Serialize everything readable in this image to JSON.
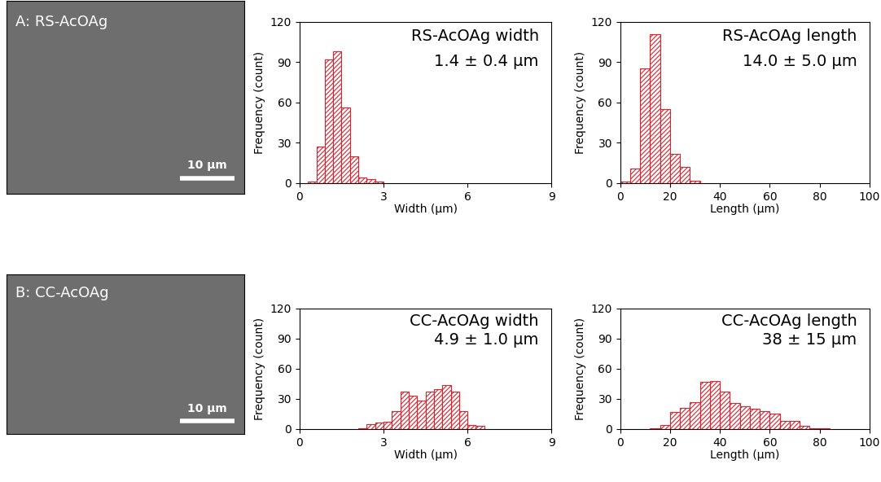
{
  "images": [
    {
      "label": "A: RS-AcOAg",
      "scale_bar": "10 µm"
    },
    {
      "label": "B: CC-AcOAg",
      "scale_bar": "10 µm"
    }
  ],
  "chart_data": [
    {
      "type": "histogram",
      "title": "RS-AcOAg width",
      "subtitle": "1.4 ± 0.4 µm",
      "x_label": "Width (µm)",
      "y_label": "Frequency (count)",
      "bins": [
        0.3,
        0.6,
        0.9,
        1.2,
        1.5,
        1.8,
        2.1,
        2.4,
        2.7,
        3.0
      ],
      "counts": [
        1,
        27,
        92,
        98,
        56,
        20,
        4,
        3,
        1
      ],
      "color": "#e0202a",
      "xlim": [
        0,
        9
      ],
      "xticks": [
        0,
        3,
        6,
        9
      ],
      "ylim": [
        0,
        120
      ],
      "yticks": [
        0,
        30,
        60,
        90,
        120
      ]
    },
    {
      "type": "histogram",
      "title": "RS-AcOAg length",
      "subtitle": "14.0 ± 5.0 µm",
      "x_label": "Length (µm)",
      "y_label": "Frequency (count)",
      "bins": [
        0,
        4,
        8,
        12,
        16,
        20,
        24,
        28,
        32
      ],
      "counts": [
        1,
        11,
        85,
        111,
        55,
        22,
        12,
        2
      ],
      "color": "#e0202a",
      "xlim": [
        0,
        100
      ],
      "xticks": [
        0,
        20,
        40,
        60,
        80,
        100
      ],
      "ylim": [
        0,
        120
      ],
      "yticks": [
        0,
        30,
        60,
        90,
        120
      ]
    },
    {
      "type": "histogram",
      "title": "CC-AcOAg width",
      "subtitle": "4.9 ± 1.0 µm",
      "x_label": "Width (µm)",
      "y_label": "Frequency (count)",
      "bins": [
        2.1,
        2.4,
        2.7,
        3.0,
        3.3,
        3.6,
        3.9,
        4.2,
        4.5,
        4.8,
        5.1,
        5.4,
        5.7,
        6.0,
        6.3,
        6.6
      ],
      "counts": [
        1,
        5,
        6,
        7,
        18,
        37,
        33,
        28,
        37,
        40,
        44,
        37,
        18,
        4,
        3
      ],
      "color": "#e0202a",
      "xlim": [
        0,
        9
      ],
      "xticks": [
        0,
        3,
        6,
        9
      ],
      "ylim": [
        0,
        120
      ],
      "yticks": [
        0,
        30,
        60,
        90,
        120
      ]
    },
    {
      "type": "histogram",
      "title": "CC-AcOAg length",
      "subtitle": "38 ± 15 µm",
      "x_label": "Length (µm)",
      "y_label": "Frequency (count)",
      "bins": [
        12,
        16,
        20,
        24,
        28,
        32,
        36,
        40,
        44,
        48,
        52,
        56,
        60,
        64,
        68,
        72,
        76,
        80,
        84
      ],
      "counts": [
        1,
        4,
        17,
        21,
        27,
        47,
        48,
        37,
        26,
        23,
        20,
        18,
        15,
        8,
        8,
        3,
        1,
        1
      ],
      "color": "#e0202a",
      "xlim": [
        0,
        100
      ],
      "xticks": [
        0,
        20,
        40,
        60,
        80,
        100
      ],
      "ylim": [
        0,
        120
      ],
      "yticks": [
        0,
        30,
        60,
        90,
        120
      ]
    }
  ]
}
